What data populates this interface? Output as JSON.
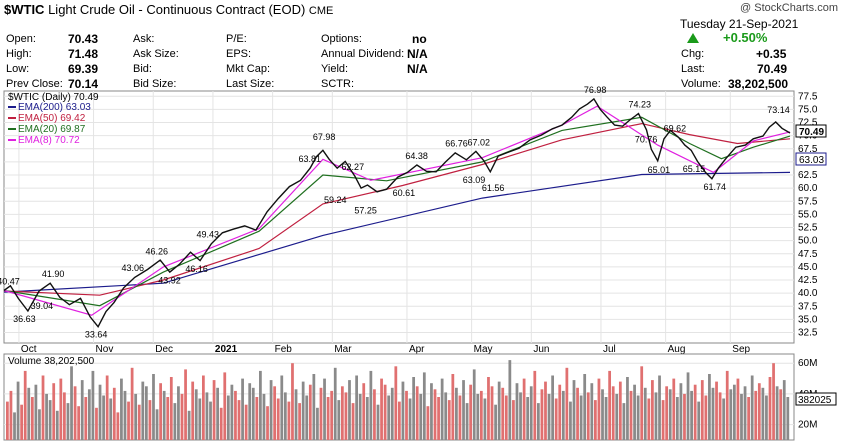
{
  "header": {
    "symbol": "$WTIC",
    "name": "Light Crude Oil - Continuous Contract (EOD)",
    "exchange": "CME",
    "copyright": "@ StockCharts.com"
  },
  "quote": {
    "open_label": "Open:",
    "open": "70.43",
    "high_label": "High:",
    "high": "71.48",
    "low_label": "Low:",
    "low": "69.39",
    "prev_close_label": "Prev Close:",
    "prev_close": "70.14",
    "ask_label": "Ask:",
    "ask": "",
    "ask_size_label": "Ask Size:",
    "ask_size": "",
    "bid_label": "Bid:",
    "bid": "",
    "bid_size_label": "Bid Size:",
    "bid_size": "",
    "pe_label": "P/E:",
    "eps_label": "EPS:",
    "mktcap_label": "Mkt Cap:",
    "lastsize_label": "Last Size:",
    "options_label": "Options:",
    "options": "no",
    "dividend_label": "Annual Dividend:",
    "dividend": "N/A",
    "yield_label": "Yield:",
    "yield": "N/A",
    "sctr_label": "SCTR:",
    "date": "Tuesday  21-Sep-2021",
    "change_pct": "+0.50%",
    "chg_label": "Chg:",
    "chg": "+0.35",
    "last_label": "Last:",
    "last": "70.49",
    "volume_label": "Volume:",
    "volume": "38,202,500",
    "up_color": "#1a9a1a"
  },
  "chart_data": {
    "type": "line",
    "title": "$WTIC (Daily) 70.49",
    "price_range": [
      30.5,
      78.5
    ],
    "y_ticks": [
      "77.5",
      "75.0",
      "72.5",
      "70.0",
      "67.5",
      "65.0",
      "62.5",
      "60.0",
      "57.5",
      "55.0",
      "52.5",
      "50.0",
      "47.5",
      "45.0",
      "42.5",
      "40.0",
      "37.5",
      "35.0",
      "32.5"
    ],
    "x_labels": [
      "Oct",
      "Nov",
      "Dec",
      "2021",
      "Feb",
      "Mar",
      "Apr",
      "May",
      "Jun",
      "Jul",
      "Aug",
      "Sep"
    ],
    "legend": [
      {
        "label": "EMA(200) 63.03",
        "color": "#1c1c8c"
      },
      {
        "label": "EMA(50) 69.42",
        "color": "#c02040"
      },
      {
        "label": "EMA(20) 69.87",
        "color": "#207020"
      },
      {
        "label": "EMA(8) 70.72",
        "color": "#e020e0"
      }
    ],
    "last_price_tag": "70.49",
    "ema200_tag": "63.03",
    "annotations": [
      "40.47",
      "41.90",
      "39.04",
      "36.63",
      "33.64",
      "43.06",
      "46.26",
      "43.92",
      "49.43",
      "46.16",
      "63.81",
      "67.98",
      "59.24",
      "62.27",
      "57.25",
      "64.38",
      "60.61",
      "66.76",
      "67.02",
      "63.09",
      "61.56",
      "76.98",
      "74.23",
      "70.76",
      "65.01",
      "69.62",
      "65.15",
      "61.74",
      "73.14"
    ],
    "price_path": [
      [
        0,
        40.5
      ],
      [
        4,
        41.4
      ],
      [
        9,
        39.0
      ],
      [
        15,
        36.6
      ],
      [
        22,
        40.4
      ],
      [
        29,
        41.9
      ],
      [
        35,
        39.2
      ],
      [
        41,
        37.8
      ],
      [
        48,
        39.0
      ],
      [
        54,
        35.5
      ],
      [
        59,
        33.6
      ],
      [
        64,
        36.5
      ],
      [
        69,
        38.2
      ],
      [
        75,
        41.0
      ],
      [
        82,
        43.0
      ],
      [
        90,
        44.5
      ],
      [
        98,
        46.3
      ],
      [
        104,
        44.0
      ],
      [
        110,
        45.5
      ],
      [
        117,
        47.8
      ],
      [
        123,
        46.2
      ],
      [
        130,
        49.4
      ],
      [
        137,
        51.5
      ],
      [
        144,
        52.2
      ],
      [
        151,
        52.8
      ],
      [
        158,
        52.0
      ],
      [
        165,
        55.5
      ],
      [
        172,
        58.0
      ],
      [
        179,
        60.3
      ],
      [
        186,
        61.5
      ],
      [
        192,
        63.8
      ],
      [
        196,
        66.0
      ],
      [
        200,
        67.2
      ],
      [
        204,
        65.5
      ],
      [
        209,
        63.8
      ],
      [
        214,
        65.1
      ],
      [
        220,
        62.3
      ],
      [
        224,
        60.0
      ],
      [
        228,
        60.6
      ],
      [
        234,
        59.3
      ],
      [
        240,
        59.8
      ],
      [
        247,
        62.1
      ],
      [
        253,
        63.0
      ],
      [
        259,
        64.4
      ],
      [
        265,
        63.2
      ],
      [
        271,
        63.1
      ],
      [
        277,
        65.0
      ],
      [
        283,
        66.7
      ],
      [
        290,
        65.4
      ],
      [
        296,
        67.0
      ],
      [
        301,
        65.2
      ],
      [
        305,
        63.1
      ],
      [
        310,
        66.1
      ],
      [
        316,
        66.8
      ],
      [
        323,
        67.6
      ],
      [
        330,
        69.2
      ],
      [
        337,
        70.1
      ],
      [
        344,
        71.3
      ],
      [
        350,
        72.0
      ],
      [
        356,
        73.5
      ],
      [
        361,
        75.1
      ],
      [
        366,
        76.0
      ],
      [
        370,
        77.0
      ],
      [
        374,
        75.0
      ],
      [
        378,
        73.6
      ],
      [
        383,
        72.0
      ],
      [
        388,
        71.8
      ],
      [
        393,
        73.1
      ],
      [
        398,
        74.2
      ],
      [
        403,
        71.1
      ],
      [
        406,
        67.4
      ],
      [
        410,
        65.2
      ],
      [
        414,
        69.4
      ],
      [
        418,
        71.0
      ],
      [
        423,
        69.7
      ],
      [
        427,
        68.2
      ],
      [
        431,
        67.2
      ],
      [
        435,
        65.1
      ],
      [
        440,
        63.0
      ],
      [
        444,
        61.8
      ],
      [
        448,
        63.8
      ],
      [
        453,
        65.7
      ],
      [
        459,
        67.8
      ],
      [
        465,
        68.2
      ],
      [
        470,
        69.4
      ],
      [
        476,
        69.9
      ],
      [
        480,
        71.6
      ],
      [
        484,
        72.6
      ],
      [
        488,
        71.4
      ],
      [
        493,
        70.5
      ]
    ],
    "ema200_path": [
      [
        0,
        40.2
      ],
      [
        100,
        41.9
      ],
      [
        200,
        51.0
      ],
      [
        300,
        58.1
      ],
      [
        400,
        62.6
      ],
      [
        493,
        63.0
      ]
    ],
    "ema50_path": [
      [
        0,
        40.4
      ],
      [
        60,
        39.6
      ],
      [
        100,
        42.5
      ],
      [
        160,
        48.5
      ],
      [
        200,
        57.0
      ],
      [
        250,
        60.5
      ],
      [
        300,
        64.5
      ],
      [
        350,
        69.2
      ],
      [
        400,
        72.3
      ],
      [
        430,
        70.2
      ],
      [
        460,
        68.5
      ],
      [
        493,
        69.4
      ]
    ],
    "ema20_path": [
      [
        0,
        40.5
      ],
      [
        60,
        37.6
      ],
      [
        100,
        44.0
      ],
      [
        160,
        51.8
      ],
      [
        200,
        62.5
      ],
      [
        240,
        61.4
      ],
      [
        300,
        65.0
      ],
      [
        350,
        71.0
      ],
      [
        400,
        73.5
      ],
      [
        430,
        68.5
      ],
      [
        450,
        65.6
      ],
      [
        470,
        67.8
      ],
      [
        493,
        69.9
      ]
    ],
    "ema8_path": [
      [
        0,
        40.5
      ],
      [
        55,
        35.8
      ],
      [
        100,
        45.0
      ],
      [
        160,
        52.3
      ],
      [
        200,
        65.5
      ],
      [
        230,
        61.5
      ],
      [
        300,
        65.8
      ],
      [
        350,
        72.0
      ],
      [
        372,
        75.6
      ],
      [
        410,
        68.2
      ],
      [
        445,
        63.0
      ],
      [
        470,
        69.0
      ],
      [
        493,
        70.7
      ]
    ],
    "volume_title": "Volume 38,202,500",
    "volume_ticks": [
      "60M",
      "40M",
      "20M"
    ],
    "volume_range_millions": [
      10,
      66
    ],
    "volume_last_tag": "382025",
    "volume_series_millions": [
      35,
      42,
      28,
      48,
      33,
      55,
      44,
      38,
      46,
      30,
      52,
      40,
      36,
      47,
      29,
      50,
      41,
      34,
      58,
      45,
      32,
      49,
      38,
      43,
      55,
      31,
      46,
      39,
      52,
      37,
      44,
      28,
      50,
      42,
      35,
      57,
      40,
      33,
      48,
      45,
      36,
      53,
      30,
      47,
      42,
      38,
      51,
      34,
      45,
      40,
      56,
      29,
      48,
      43,
      37,
      52,
      41,
      35,
      49,
      44,
      31,
      54,
      39,
      46,
      42,
      36,
      50,
      33,
      47,
      44,
      38,
      55,
      40,
      32,
      49,
      45,
      37,
      52,
      41,
      35,
      60,
      43,
      34,
      48,
      39,
      46,
      53,
      31,
      44,
      50,
      38,
      42,
      57,
      36,
      45,
      41,
      49,
      34,
      52,
      40,
      47,
      38,
      55,
      43,
      33,
      50,
      46,
      39,
      44,
      58,
      35,
      48,
      42,
      37,
      51,
      45,
      40,
      54,
      32,
      47,
      43,
      38,
      50,
      41,
      36,
      53,
      44,
      39,
      49,
      34,
      46,
      56,
      40,
      42,
      37,
      51,
      45,
      33,
      48,
      44,
      39,
      62,
      36,
      47,
      41,
      50,
      38,
      45,
      55,
      34,
      43,
      48,
      40,
      52,
      37,
      46,
      42,
      57,
      35,
      49,
      44,
      39,
      53,
      41,
      47,
      36,
      50,
      43,
      38,
      55,
      45,
      40,
      48,
      34,
      51,
      42,
      46,
      39,
      58,
      44,
      37,
      49,
      41,
      52,
      36,
      45,
      43,
      50,
      38,
      47,
      40,
      54,
      42,
      46,
      35,
      49,
      39,
      53,
      44,
      48,
      41,
      37,
      55,
      43,
      46,
      50,
      40,
      45,
      38,
      52,
      42,
      47,
      44,
      39,
      51,
      60,
      45,
      43,
      49,
      38
    ]
  }
}
